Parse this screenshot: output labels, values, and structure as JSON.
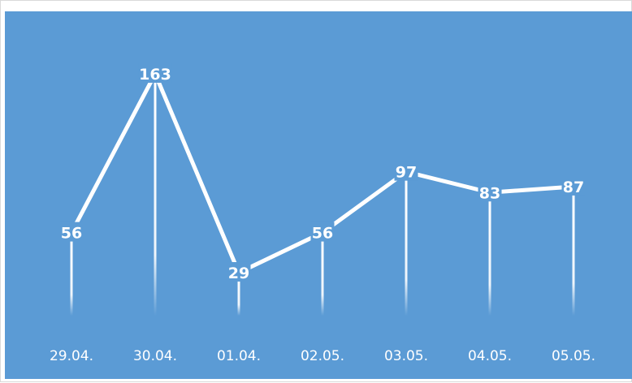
{
  "chart_data": {
    "type": "line",
    "categories": [
      "29.04.",
      "30.04.",
      "01.04.",
      "02.05.",
      "03.05.",
      "04.05.",
      "05.05."
    ],
    "values": [
      56,
      163,
      29,
      56,
      97,
      83,
      87
    ],
    "data_labels": [
      "56",
      "163",
      "29",
      "56",
      "97",
      "83",
      "87"
    ],
    "title": "",
    "xlabel": "",
    "ylabel": "",
    "ylim": [
      0,
      180
    ],
    "grid": false,
    "legend": "none",
    "colors": {
      "background": "#5b9bd5",
      "line": "#ffffff",
      "labels": "#ffffff"
    }
  }
}
